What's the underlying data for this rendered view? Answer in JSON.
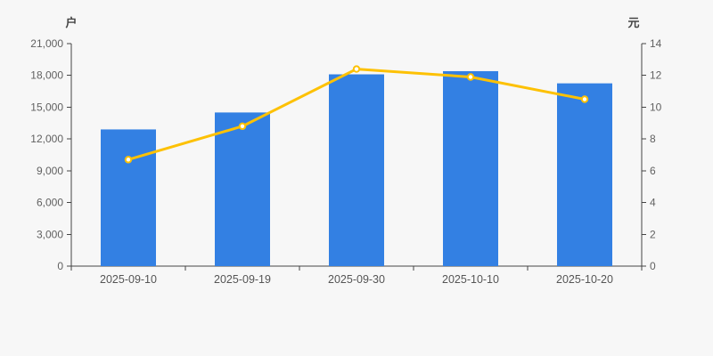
{
  "chart_data": {
    "type": "bar",
    "title": "",
    "categories": [
      "2025-09-10",
      "2025-09-19",
      "2025-09-30",
      "2025-10-10",
      "2025-10-20"
    ],
    "series": [
      {
        "name": "户",
        "type": "bar",
        "y_axis": "left",
        "values": [
          12900,
          14500,
          18100,
          18400,
          17250
        ]
      },
      {
        "name": "元",
        "type": "line",
        "y_axis": "right",
        "values": [
          6.7,
          8.8,
          12.4,
          11.9,
          10.5
        ]
      }
    ],
    "left_axis": {
      "name": "户",
      "min": 0,
      "max": 21000,
      "step": 3000,
      "tick_labels": [
        "0",
        "3,000",
        "6,000",
        "9,000",
        "12,000",
        "15,000",
        "18,000",
        "21,000"
      ]
    },
    "right_axis": {
      "name": "元",
      "min": 0,
      "max": 14,
      "step": 2,
      "tick_labels": [
        "0",
        "2",
        "4",
        "6",
        "8",
        "10",
        "12",
        "14"
      ]
    },
    "legend": false,
    "grid": false
  },
  "colors": {
    "background": "#F7F7F7",
    "axis_line": "#444444",
    "tick_text": "#616161",
    "date_text": "#555555",
    "axis_name_text": "#454545",
    "bar": "#3380E3",
    "line": "#FDC104",
    "marker_fill": "#FFFFFF"
  }
}
